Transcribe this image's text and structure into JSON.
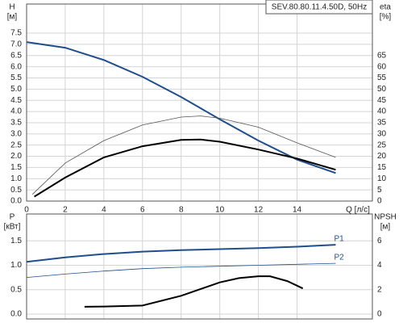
{
  "chart_data": [
    {
      "type": "line",
      "title": "SEV.80.80.11.4.50D, 50Hz",
      "y_label": "H",
      "y_unit": "[м]",
      "y2_label": "eta",
      "y2_unit": "[%]",
      "x_label": "Q [л/с]",
      "xlim": [
        0,
        17.9
      ],
      "xticks": [
        0,
        2,
        4,
        6,
        8,
        10,
        12,
        14
      ],
      "ylim": [
        0,
        8.8
      ],
      "yticks": [
        {
          "value": 0,
          "label": "0.0"
        },
        0.5,
        {
          "value": 1,
          "label": "1.0"
        },
        1.5,
        {
          "value": 2,
          "label": "2.0"
        },
        2.5,
        {
          "value": 3,
          "label": "3.0"
        },
        3.5,
        {
          "value": 4,
          "label": "4.0"
        },
        4.5,
        {
          "value": 5,
          "label": "5.0"
        },
        5.5,
        {
          "value": 6,
          "label": "6.0"
        },
        6.5,
        {
          "value": 7,
          "label": "7.0"
        },
        7.5
      ],
      "y2lim": [
        0,
        88
      ],
      "y2ticks": [
        0,
        5,
        10,
        15,
        20,
        25,
        30,
        35,
        40,
        45,
        50,
        55,
        60,
        65
      ],
      "grid": true,
      "series": [
        {
          "color": "#1f4e8c",
          "width": 2,
          "x": [
            0,
            2,
            4,
            6,
            8,
            10,
            12,
            14,
            16
          ],
          "values": [
            7.1,
            6.85,
            6.3,
            5.55,
            4.65,
            3.65,
            2.7,
            1.85,
            1.25
          ]
        },
        {
          "color": "#555555",
          "width": 0.8,
          "axis": "y2",
          "x": [
            0.3,
            2,
            4,
            6,
            8,
            9,
            10,
            12,
            14,
            16
          ],
          "values": [
            3,
            17,
            27,
            34,
            37.5,
            38,
            37,
            33,
            26,
            19.5
          ]
        },
        {
          "color": "#000000",
          "width": 2,
          "axis": "y2",
          "x": [
            0.4,
            2,
            4,
            6,
            8,
            9,
            10,
            12,
            14,
            16
          ],
          "values": [
            2,
            10.5,
            19.5,
            24.5,
            27.3,
            27.5,
            26.5,
            23,
            19,
            14
          ]
        }
      ]
    },
    {
      "type": "line",
      "y_label": "P",
      "y_unit": "[кВт]",
      "y2_label": "NPSH",
      "y2_unit": "[м]",
      "xlim": [
        0,
        17.9
      ],
      "ylim": [
        -0.1,
        2.05
      ],
      "yticks": [
        {
          "value": 0,
          "label": "0.0"
        },
        0.5,
        {
          "value": 1,
          "label": "1.0"
        },
        1.5
      ],
      "y2lim": [
        -0.4,
        8.2
      ],
      "y2ticks": [
        0,
        2,
        4,
        6
      ],
      "grid": true,
      "series": [
        {
          "name": "P1",
          "color": "#1f4e8c",
          "width": 2,
          "x": [
            0,
            2,
            4,
            6,
            8,
            10,
            12,
            14,
            16
          ],
          "values": [
            1.07,
            1.16,
            1.23,
            1.28,
            1.31,
            1.33,
            1.35,
            1.38,
            1.42
          ]
        },
        {
          "name": "P2",
          "color": "#1f4e8c",
          "width": 0.8,
          "x": [
            0,
            2,
            4,
            6,
            8,
            10,
            12,
            14,
            16
          ],
          "values": [
            0.75,
            0.82,
            0.88,
            0.93,
            0.96,
            0.98,
            1.0,
            1.02,
            1.04
          ]
        },
        {
          "color": "#000000",
          "width": 2,
          "axis": "y2",
          "x": [
            3,
            4,
            6,
            8,
            10,
            11,
            12,
            12.6,
            13.5,
            14.3
          ],
          "values": [
            0.6,
            0.62,
            0.7,
            1.5,
            2.6,
            2.95,
            3.1,
            3.1,
            2.7,
            2.1
          ]
        }
      ]
    }
  ]
}
